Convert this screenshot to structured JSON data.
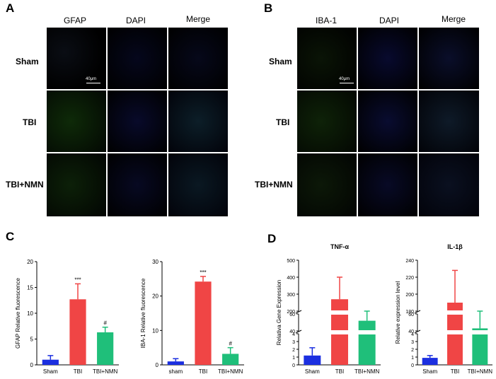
{
  "panels": {
    "A": {
      "letter": "A",
      "columns": [
        "GFAP",
        "DAPI",
        "Merge"
      ],
      "rows": [
        "Sham",
        "TBI",
        "TBI+NMN"
      ],
      "scale_bar": "40μm"
    },
    "B": {
      "letter": "B",
      "columns": [
        "IBA-1",
        "DAPI",
        "Merge"
      ],
      "rows": [
        "Sham",
        "TBI",
        "TBI+NMN"
      ],
      "scale_bar": "40μm"
    },
    "C": {
      "letter": "C"
    },
    "D": {
      "letter": "D"
    }
  },
  "colors": {
    "blue": "#1b2fe0",
    "red": "#f04545",
    "green": "#1fbf7a"
  },
  "chart_data": [
    {
      "type": "bar",
      "categories": [
        "Sham",
        "TBI",
        "TBI+NMN"
      ],
      "values": [
        1.0,
        12.7,
        6.3
      ],
      "errors": [
        0.8,
        3.0,
        1.0
      ],
      "ylabel": "GFAP Relative fluorescence",
      "ylim": [
        0,
        20
      ],
      "yticks": [
        0,
        5,
        10,
        15,
        20
      ],
      "annotations": [
        "",
        "***",
        "#"
      ]
    },
    {
      "type": "bar",
      "categories": [
        "sham",
        "TBI",
        "TBI+NMN"
      ],
      "values": [
        1.0,
        24.2,
        3.2
      ],
      "errors": [
        0.8,
        1.5,
        1.8
      ],
      "ylabel": "IBA-1 Relative fluorescence",
      "ylim": [
        0,
        30
      ],
      "yticks": [
        0,
        10,
        20,
        30
      ],
      "annotations": [
        "",
        "***",
        "#"
      ]
    },
    {
      "type": "bar",
      "title": "TNF-α",
      "categories": [
        "Sham",
        "TBI",
        "TBI+NMN"
      ],
      "values": [
        1.2,
        270,
        52
      ],
      "errors": [
        1.0,
        130,
        10
      ],
      "ylabel": "Relativa Gene Expression",
      "broken_axis": true,
      "yticks": [
        "0",
        "1",
        "2",
        "3",
        "4",
        "40",
        "60",
        "200",
        "300",
        "400",
        "500"
      ]
    },
    {
      "type": "bar",
      "title": "IL-1β",
      "categories": [
        "Sham",
        "TBI",
        "TBI+NMN"
      ],
      "values": [
        0.9,
        190,
        43
      ],
      "errors": [
        0.3,
        38,
        20
      ],
      "ylabel": "Relative expression level",
      "broken_axis": true,
      "yticks": [
        "0",
        "1",
        "2",
        "3",
        "4",
        "40",
        "60",
        "180",
        "200",
        "220",
        "240"
      ]
    }
  ]
}
